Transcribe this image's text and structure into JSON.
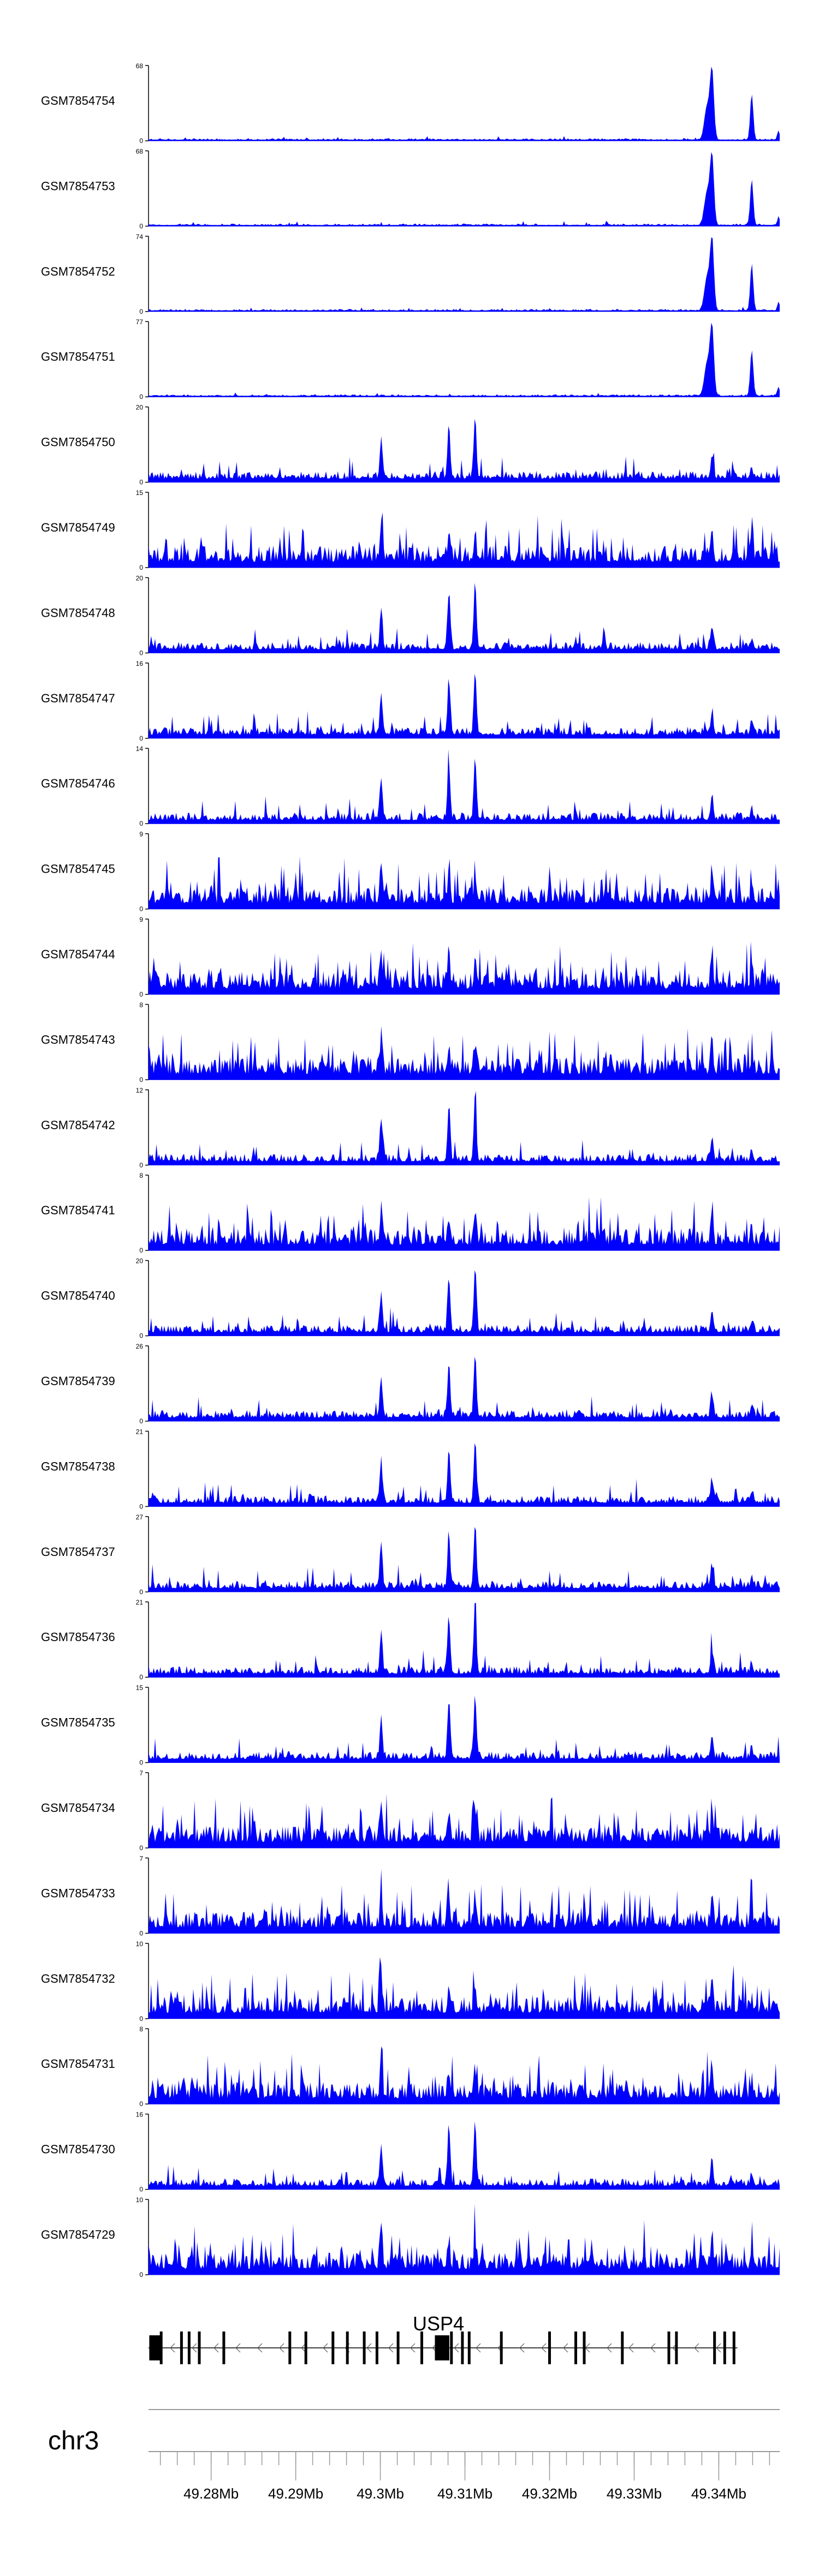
{
  "chart_data": {
    "type": "area",
    "title": "",
    "color": "#0000ff",
    "x_unit": "Mb",
    "xlim": [
      49.2726,
      49.3472
    ],
    "tracks": [
      {
        "name": "GSM7854754",
        "ymax": 68,
        "profile": "sharp"
      },
      {
        "name": "GSM7854753",
        "ymax": 68,
        "profile": "sharp"
      },
      {
        "name": "GSM7854752",
        "ymax": 74,
        "profile": "sharp"
      },
      {
        "name": "GSM7854751",
        "ymax": 77,
        "profile": "sharp"
      },
      {
        "name": "GSM7854750",
        "ymax": 20,
        "profile": "mid"
      },
      {
        "name": "GSM7854749",
        "ymax": 15,
        "profile": "noisy"
      },
      {
        "name": "GSM7854748",
        "ymax": 20,
        "profile": "mid"
      },
      {
        "name": "GSM7854747",
        "ymax": 16,
        "profile": "mid"
      },
      {
        "name": "GSM7854746",
        "ymax": 14,
        "profile": "mid"
      },
      {
        "name": "GSM7854745",
        "ymax": 9,
        "profile": "noisy"
      },
      {
        "name": "GSM7854744",
        "ymax": 9,
        "profile": "noisy"
      },
      {
        "name": "GSM7854743",
        "ymax": 8,
        "profile": "noisy"
      },
      {
        "name": "GSM7854742",
        "ymax": 12,
        "profile": "mid"
      },
      {
        "name": "GSM7854741",
        "ymax": 8,
        "profile": "noisy"
      },
      {
        "name": "GSM7854740",
        "ymax": 20,
        "profile": "mid"
      },
      {
        "name": "GSM7854739",
        "ymax": 26,
        "profile": "mid"
      },
      {
        "name": "GSM7854738",
        "ymax": 21,
        "profile": "mid"
      },
      {
        "name": "GSM7854737",
        "ymax": 27,
        "profile": "mid"
      },
      {
        "name": "GSM7854736",
        "ymax": 21,
        "profile": "mid"
      },
      {
        "name": "GSM7854735",
        "ymax": 15,
        "profile": "mid"
      },
      {
        "name": "GSM7854734",
        "ymax": 7,
        "profile": "noisy"
      },
      {
        "name": "GSM7854733",
        "ymax": 7,
        "profile": "noisy"
      },
      {
        "name": "GSM7854732",
        "ymax": 10,
        "profile": "noisy"
      },
      {
        "name": "GSM7854731",
        "ymax": 8,
        "profile": "noisy"
      },
      {
        "name": "GSM7854730",
        "ymax": 16,
        "profile": "mid"
      },
      {
        "name": "GSM7854729",
        "ymax": 10,
        "profile": "noisy"
      }
    ],
    "peaks_mb": [
      49.3001,
      49.3081,
      49.3112,
      49.3392,
      49.3439
    ],
    "gene": {
      "name": "USP4",
      "strand": "-",
      "start_mb": 49.2726,
      "end_mb": 49.3422,
      "exons_mb": [
        49.2734,
        49.2741,
        49.2765,
        49.2774,
        49.2786,
        49.2815,
        49.2893,
        49.2912,
        49.2944,
        49.2961,
        49.2981,
        49.2996,
        49.3021,
        49.3049,
        49.3069,
        49.3077,
        49.3084,
        49.3097,
        49.3105,
        49.3143,
        49.32,
        49.3231,
        49.3241,
        49.3286,
        49.3341,
        49.335,
        49.3395,
        49.3407,
        49.3418
      ]
    },
    "chromosome": "chr3",
    "axis_ticks_mb": [
      49.28,
      49.29,
      49.3,
      49.31,
      49.32,
      49.33,
      49.34
    ],
    "axis_tick_labels": [
      "49.28Mb",
      "49.29Mb",
      "49.3Mb",
      "49.31Mb",
      "49.32Mb",
      "49.33Mb",
      "49.34Mb"
    ],
    "minor_tick_step_mb": 0.002
  }
}
